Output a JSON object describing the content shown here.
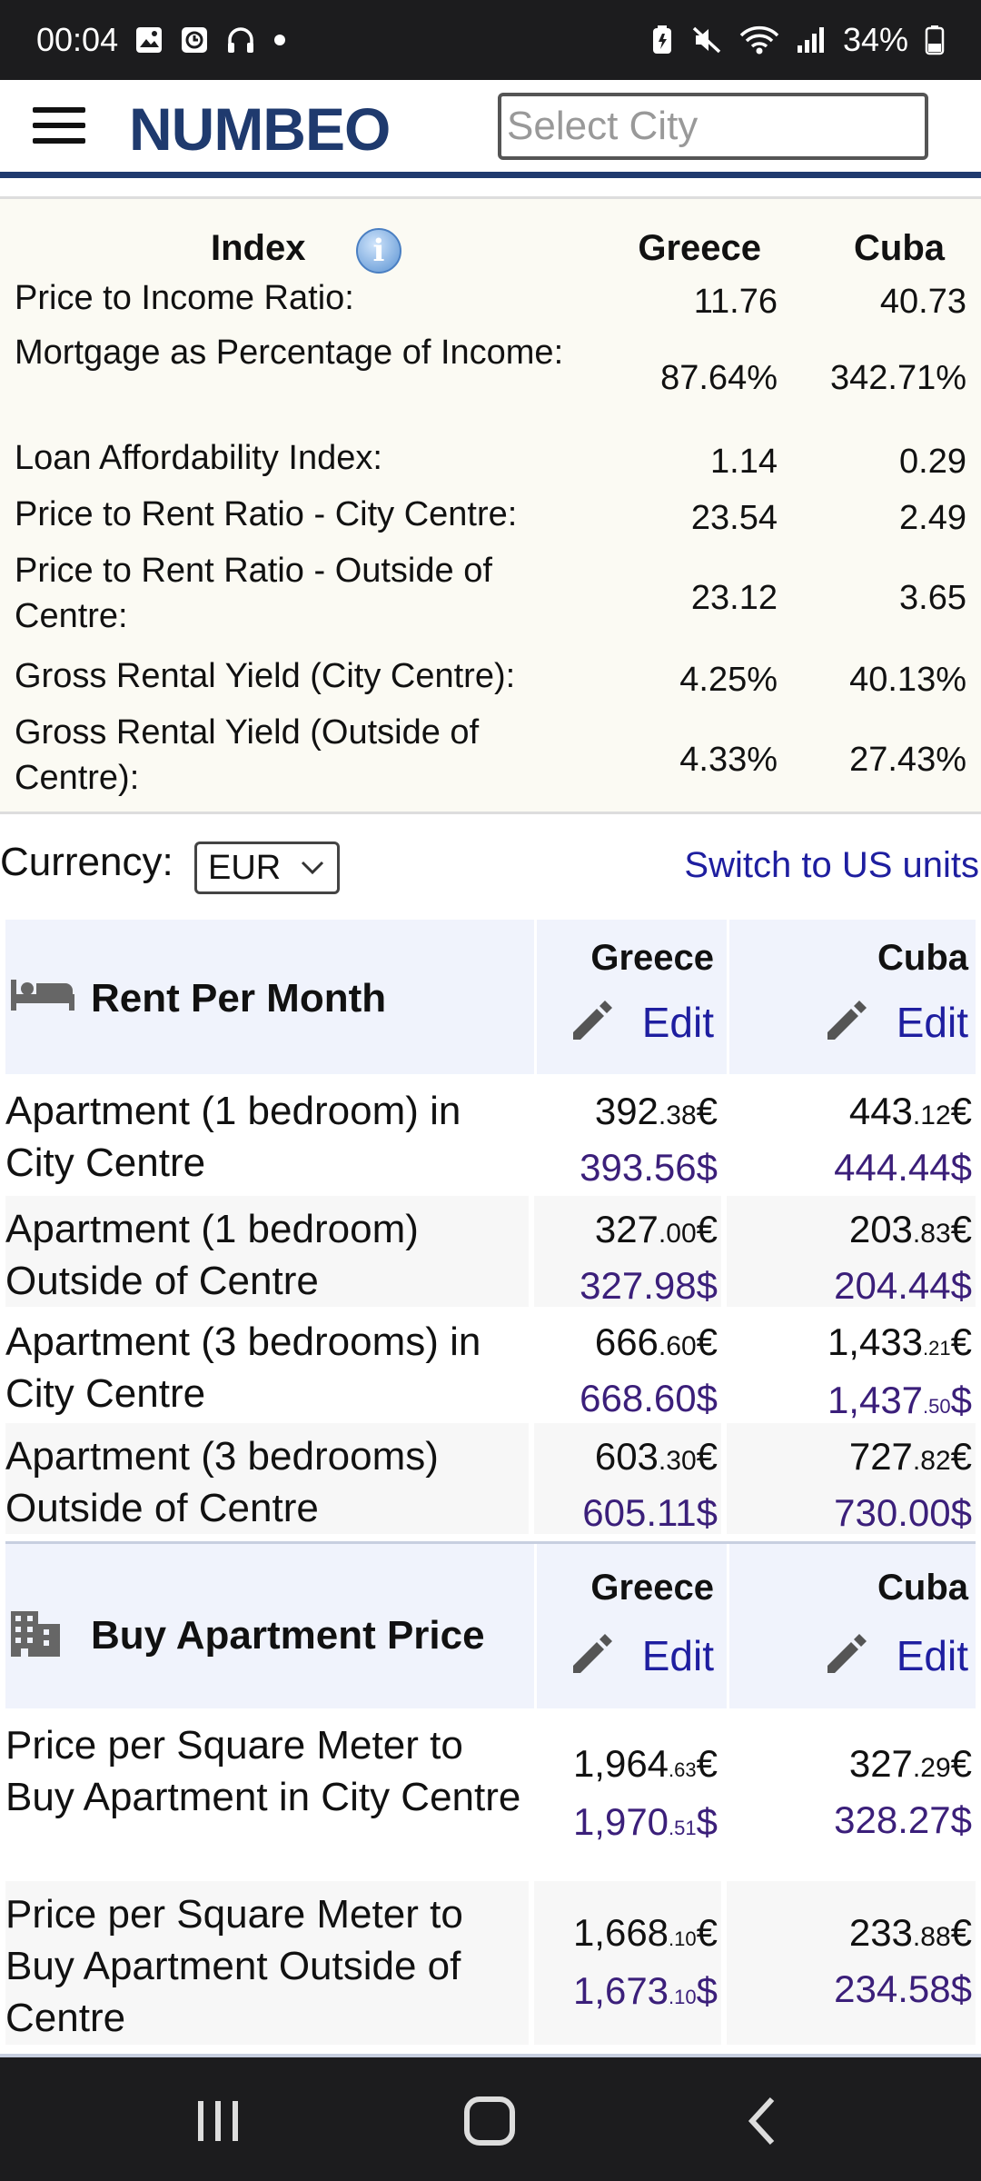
{
  "status_bar": {
    "time": "00:04",
    "battery": "34%",
    "icons": [
      "gallery-icon",
      "clock-app-icon",
      "headphones-icon",
      "dot-icon",
      "battery-saver-icon",
      "mute-icon",
      "wifi-icon",
      "signal-icon",
      "battery-icon"
    ]
  },
  "header": {
    "logo": "NUMBEO",
    "city_placeholder": "Select City"
  },
  "index_table": {
    "header": {
      "index": "Index",
      "col1": "Greece",
      "col2": "Cuba"
    },
    "rows": [
      {
        "label": "Price to Income Ratio:",
        "v1": "11.76",
        "v2": "40.73"
      },
      {
        "label": "Mortgage as Percentage of Income:",
        "v1": "87.64%",
        "v2": "342.71%"
      },
      {
        "label": "Loan Affordability Index:",
        "v1": "1.14",
        "v2": "0.29"
      },
      {
        "label": "Price to Rent Ratio - City Centre:",
        "v1": "23.54",
        "v2": "2.49"
      },
      {
        "label": "Price to Rent Ratio - Outside of Centre:",
        "v1": "23.12",
        "v2": "3.65"
      },
      {
        "label": "Gross Rental Yield (City Centre):",
        "v1": "4.25%",
        "v2": "40.13%"
      },
      {
        "label": "Gross Rental Yield (Outside of Centre):",
        "v1": "4.33%",
        "v2": "27.43%"
      }
    ]
  },
  "currency": {
    "label": "Currency:",
    "selected": "EUR",
    "switch_link": "Switch to US units"
  },
  "rent_section": {
    "title": "Rent Per Month",
    "col1": "Greece",
    "col2": "Cuba",
    "edit_label": "Edit",
    "rows": [
      {
        "label": "Apartment (1 bedroom) in City Centre",
        "c1": {
          "eur_main": "392",
          "eur_dec": ".38",
          "eur_sym": "€",
          "usd_main": "393.56",
          "usd_dec": "",
          "usd_sym": "$"
        },
        "c2": {
          "eur_main": "443",
          "eur_dec": ".12",
          "eur_sym": "€",
          "usd_main": "444.44",
          "usd_dec": "",
          "usd_sym": "$"
        }
      },
      {
        "label": "Apartment (1 bedroom) Outside of Centre",
        "c1": {
          "eur_main": "327",
          "eur_dec": ".00",
          "eur_sym": "€",
          "usd_main": "327.98",
          "usd_dec": "",
          "usd_sym": "$"
        },
        "c2": {
          "eur_main": "203",
          "eur_dec": ".83",
          "eur_sym": "€",
          "usd_main": "204.44",
          "usd_dec": "",
          "usd_sym": "$"
        }
      },
      {
        "label": "Apartment (3 bedrooms) in City Centre",
        "c1": {
          "eur_main": "666",
          "eur_dec": ".60",
          "eur_sym": "€",
          "usd_main": "668.60",
          "usd_dec": "",
          "usd_sym": "$"
        },
        "c2": {
          "eur_main": "1,433",
          "eur_dec": ".21",
          "eur_sym": "€",
          "usd_main": "1,437",
          "usd_dec": ".50",
          "usd_sym": "$"
        }
      },
      {
        "label": "Apartment (3 bedrooms) Outside of Centre",
        "c1": {
          "eur_main": "603",
          "eur_dec": ".30",
          "eur_sym": "€",
          "usd_main": "605.11",
          "usd_dec": "",
          "usd_sym": "$"
        },
        "c2": {
          "eur_main": "727",
          "eur_dec": ".82",
          "eur_sym": "€",
          "usd_main": "730.00",
          "usd_dec": "",
          "usd_sym": "$"
        }
      }
    ]
  },
  "buy_section": {
    "title": "Buy Apartment Price",
    "col1": "Greece",
    "col2": "Cuba",
    "edit_label": "Edit",
    "rows": [
      {
        "label": "Price per Square Meter to Buy Apartment in City Centre",
        "c1": {
          "eur_main": "1,964",
          "eur_dec": ".63",
          "eur_sym": "€",
          "usd_main": "1,970",
          "usd_dec": ".51",
          "usd_sym": "$"
        },
        "c2": {
          "eur_main": "327",
          "eur_dec": ".29",
          "eur_sym": "€",
          "usd_main": "328.27",
          "usd_dec": "",
          "usd_sym": "$"
        }
      },
      {
        "label": "Price per Square Meter to Buy Apartment Outside of Centre",
        "c1": {
          "eur_main": "1,668",
          "eur_dec": ".10",
          "eur_sym": "€",
          "usd_main": "1,673",
          "usd_dec": ".10",
          "usd_sym": "$"
        },
        "c2": {
          "eur_main": "233",
          "eur_dec": ".88",
          "eur_sym": "€",
          "usd_main": "234.58",
          "usd_dec": "",
          "usd_sym": "$"
        }
      }
    ]
  },
  "colors": {
    "brand": "#1f3a6e",
    "link": "#1e1ea0",
    "usd": "#3b1f7a",
    "section_bg": "#f0f3fc"
  }
}
